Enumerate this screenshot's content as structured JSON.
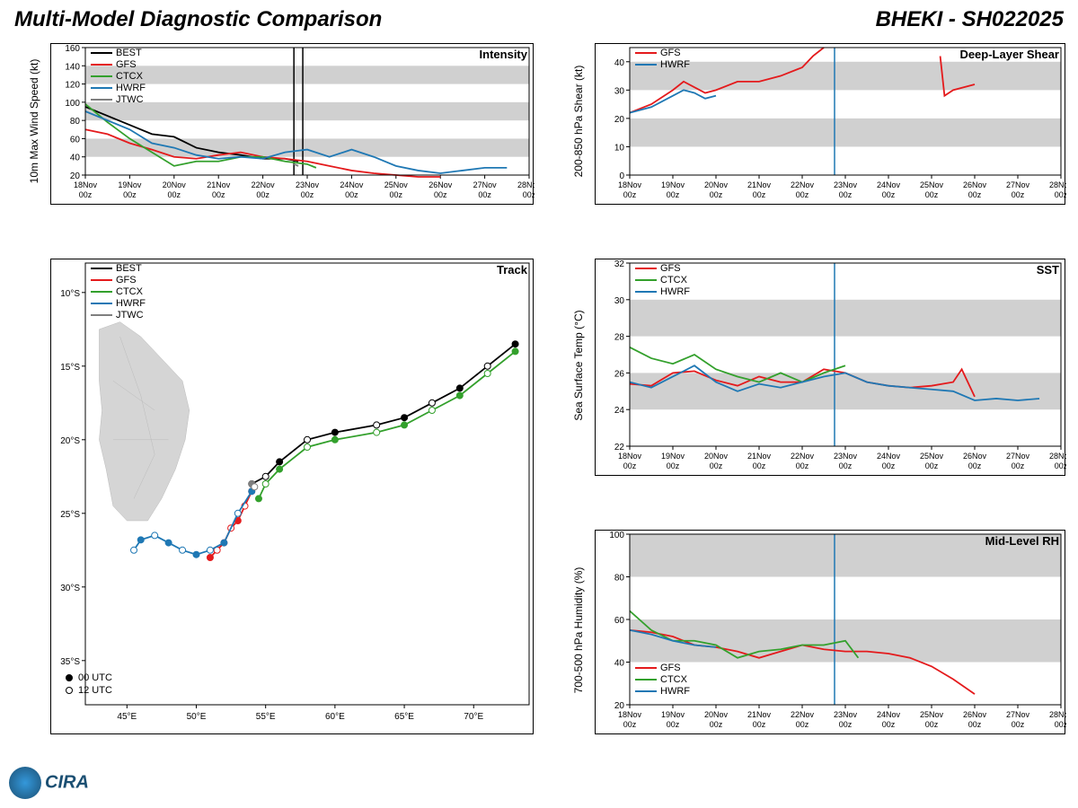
{
  "title": "Multi-Model Diagnostic Comparison",
  "storm_id": "BHEKI - SH022025",
  "colors": {
    "BEST": "#000000",
    "GFS": "#e41a1c",
    "CTCX": "#33a02c",
    "HWRF": "#1f78b4",
    "JTWC": "#7f7f7f",
    "grid_band": "#d0d0d0",
    "axis": "#000000",
    "vline": "#1f78b4",
    "bg": "#ffffff"
  },
  "x_axis": {
    "labels": [
      "18Nov\n00z",
      "19Nov\n00z",
      "20Nov\n00z",
      "21Nov\n00z",
      "22Nov\n00z",
      "23Nov\n00z",
      "24Nov\n00z",
      "25Nov\n00z",
      "26Nov\n00z",
      "27Nov\n00z",
      "28Nov\n00z"
    ],
    "tick_positions": [
      0,
      1,
      2,
      3,
      4,
      5,
      6,
      7,
      8,
      9,
      10
    ]
  },
  "intensity": {
    "title": "Intensity",
    "ylabel": "10m Max Wind Speed (kt)",
    "ylim": [
      20,
      160
    ],
    "ytick_step": 20,
    "gray_bands": [
      [
        40,
        60
      ],
      [
        80,
        100
      ],
      [
        120,
        140
      ]
    ],
    "vlines": [
      4.7,
      4.9
    ],
    "legend": [
      "BEST",
      "GFS",
      "CTCX",
      "HWRF",
      "JTWC"
    ],
    "series": {
      "BEST": [
        [
          0,
          95
        ],
        [
          0.5,
          85
        ],
        [
          1,
          75
        ],
        [
          1.5,
          65
        ],
        [
          2,
          62
        ],
        [
          2.5,
          50
        ],
        [
          3,
          45
        ],
        [
          3.5,
          42
        ],
        [
          4,
          38
        ],
        [
          4.5,
          38
        ],
        [
          4.8,
          35
        ]
      ],
      "GFS": [
        [
          0,
          70
        ],
        [
          0.5,
          65
        ],
        [
          1,
          55
        ],
        [
          1.5,
          48
        ],
        [
          2,
          40
        ],
        [
          2.5,
          38
        ],
        [
          3,
          42
        ],
        [
          3.5,
          45
        ],
        [
          4,
          40
        ],
        [
          4.5,
          38
        ],
        [
          5,
          35
        ],
        [
          5.5,
          30
        ],
        [
          6,
          25
        ],
        [
          6.5,
          22
        ],
        [
          7,
          20
        ],
        [
          7.5,
          18
        ],
        [
          8,
          18
        ]
      ],
      "CTCX": [
        [
          0,
          98
        ],
        [
          0.5,
          78
        ],
        [
          1,
          60
        ],
        [
          1.5,
          45
        ],
        [
          2,
          30
        ],
        [
          2.5,
          35
        ],
        [
          3,
          35
        ],
        [
          3.5,
          40
        ],
        [
          4,
          40
        ],
        [
          4.5,
          35
        ],
        [
          5,
          32
        ],
        [
          5.2,
          28
        ]
      ],
      "HWRF": [
        [
          0,
          90
        ],
        [
          0.5,
          80
        ],
        [
          1,
          70
        ],
        [
          1.5,
          55
        ],
        [
          2,
          50
        ],
        [
          2.5,
          42
        ],
        [
          3,
          38
        ],
        [
          3.5,
          40
        ],
        [
          4,
          38
        ],
        [
          4.5,
          45
        ],
        [
          5,
          48
        ],
        [
          5.5,
          40
        ],
        [
          6,
          48
        ],
        [
          6.5,
          40
        ],
        [
          7,
          30
        ],
        [
          7.5,
          25
        ],
        [
          8,
          22
        ],
        [
          8.5,
          25
        ],
        [
          9,
          28
        ],
        [
          9.5,
          28
        ]
      ],
      "JTWC": [
        [
          4.7,
          32
        ],
        [
          4.8,
          30
        ]
      ]
    }
  },
  "track": {
    "title": "Track",
    "legend": [
      "BEST",
      "GFS",
      "CTCX",
      "HWRF",
      "JTWC"
    ],
    "xlim": [
      42,
      74
    ],
    "ylim": [
      38,
      8
    ],
    "xticks": [
      45,
      50,
      55,
      60,
      65,
      70
    ],
    "yticks": [
      10,
      15,
      20,
      25,
      30,
      35
    ],
    "xlabels": [
      "45°E",
      "50°E",
      "55°E",
      "60°E",
      "65°E",
      "70°E"
    ],
    "ylabels": [
      "10°S",
      "15°S",
      "20°S",
      "25°S",
      "30°S",
      "35°S"
    ],
    "marker_legend": [
      {
        "fill": "#000000",
        "label": "00 UTC"
      },
      {
        "fill": "none",
        "label": "12 UTC"
      }
    ],
    "series": {
      "BEST": [
        [
          73,
          13.5
        ],
        [
          71,
          15
        ],
        [
          69,
          16.5
        ],
        [
          67,
          17.5
        ],
        [
          65,
          18.5
        ],
        [
          63,
          19
        ],
        [
          60,
          19.5
        ],
        [
          58,
          20
        ],
        [
          56,
          21.5
        ],
        [
          55,
          22.5
        ],
        [
          54,
          23
        ]
      ],
      "GFS": [
        [
          54,
          23.5
        ],
        [
          53.5,
          24.5
        ],
        [
          53,
          25.5
        ],
        [
          52.5,
          26
        ],
        [
          52,
          27
        ],
        [
          51.5,
          27.5
        ],
        [
          51,
          28
        ]
      ],
      "CTCX": [
        [
          73,
          14
        ],
        [
          71,
          15.5
        ],
        [
          69,
          17
        ],
        [
          67,
          18
        ],
        [
          65,
          19
        ],
        [
          63,
          19.5
        ],
        [
          60,
          20
        ],
        [
          58,
          20.5
        ],
        [
          56,
          22
        ],
        [
          55,
          23
        ],
        [
          54.5,
          24
        ]
      ],
      "HWRF": [
        [
          54,
          23.5
        ],
        [
          53,
          25
        ],
        [
          52,
          27
        ],
        [
          51,
          27.5
        ],
        [
          50,
          27.8
        ],
        [
          49,
          27.5
        ],
        [
          48,
          27
        ],
        [
          47,
          26.5
        ],
        [
          46,
          26.8
        ],
        [
          45.5,
          27.5
        ]
      ],
      "JTWC": [
        [
          54,
          23
        ],
        [
          54.2,
          23.2
        ]
      ]
    }
  },
  "shear": {
    "title": "Deep-Layer Shear",
    "ylabel": "200-850 hPa Shear (kt)",
    "ylim": [
      0,
      45
    ],
    "ytick_positions": [
      0,
      10,
      20,
      30,
      40
    ],
    "gray_bands": [
      [
        10,
        20
      ],
      [
        30,
        40
      ]
    ],
    "vline": 4.75,
    "legend": [
      "GFS",
      "HWRF"
    ],
    "series": {
      "GFS": [
        [
          0,
          22
        ],
        [
          0.5,
          25
        ],
        [
          1,
          30
        ],
        [
          1.25,
          33
        ],
        [
          1.5,
          31
        ],
        [
          1.75,
          29
        ],
        [
          2,
          30
        ],
        [
          2.5,
          33
        ],
        [
          3,
          33
        ],
        [
          3.5,
          35
        ],
        [
          4,
          38
        ],
        [
          4.25,
          42
        ],
        [
          4.5,
          45
        ]
      ],
      "GFS2": [
        [
          7.2,
          42
        ],
        [
          7.3,
          28
        ],
        [
          7.5,
          30
        ],
        [
          8,
          32
        ]
      ],
      "HWRF": [
        [
          0,
          22
        ],
        [
          0.5,
          24
        ],
        [
          1,
          28
        ],
        [
          1.25,
          30
        ],
        [
          1.5,
          29
        ],
        [
          1.75,
          27
        ],
        [
          2,
          28
        ]
      ]
    }
  },
  "sst": {
    "title": "SST",
    "ylabel": "Sea Surface Temp (°C)",
    "ylim": [
      22,
      32
    ],
    "ytick_step": 2,
    "gray_bands": [
      [
        24,
        26
      ],
      [
        28,
        30
      ]
    ],
    "vline": 4.75,
    "legend": [
      "GFS",
      "CTCX",
      "HWRF"
    ],
    "series": {
      "GFS": [
        [
          0,
          25.4
        ],
        [
          0.5,
          25.3
        ],
        [
          1,
          26
        ],
        [
          1.5,
          26.1
        ],
        [
          2,
          25.6
        ],
        [
          2.5,
          25.3
        ],
        [
          3,
          25.8
        ],
        [
          3.5,
          25.5
        ],
        [
          4,
          25.5
        ],
        [
          4.5,
          26.2
        ],
        [
          5,
          26
        ],
        [
          5.5,
          25.5
        ],
        [
          6,
          25.3
        ],
        [
          6.5,
          25.2
        ],
        [
          7,
          25.3
        ],
        [
          7.5,
          25.5
        ],
        [
          7.7,
          26.2
        ],
        [
          8,
          24.7
        ]
      ],
      "CTCX": [
        [
          0,
          27.4
        ],
        [
          0.5,
          26.8
        ],
        [
          1,
          26.5
        ],
        [
          1.5,
          27
        ],
        [
          2,
          26.2
        ],
        [
          2.5,
          25.8
        ],
        [
          3,
          25.5
        ],
        [
          3.5,
          26
        ],
        [
          4,
          25.5
        ],
        [
          4.5,
          26
        ],
        [
          5,
          26.4
        ]
      ],
      "HWRF": [
        [
          0,
          25.5
        ],
        [
          0.5,
          25.2
        ],
        [
          1,
          25.8
        ],
        [
          1.5,
          26.4
        ],
        [
          2,
          25.5
        ],
        [
          2.5,
          25
        ],
        [
          3,
          25.4
        ],
        [
          3.5,
          25.2
        ],
        [
          4,
          25.5
        ],
        [
          4.5,
          25.8
        ],
        [
          5,
          26
        ],
        [
          5.5,
          25.5
        ],
        [
          6,
          25.3
        ],
        [
          6.5,
          25.2
        ],
        [
          7,
          25.1
        ],
        [
          7.5,
          25
        ],
        [
          8,
          24.5
        ],
        [
          8.5,
          24.6
        ],
        [
          9,
          24.5
        ],
        [
          9.5,
          24.6
        ]
      ]
    }
  },
  "rh": {
    "title": "Mid-Level RH",
    "ylabel": "700-500 hPa Humidity (%)",
    "ylim": [
      20,
      100
    ],
    "ytick_step": 20,
    "gray_bands": [
      [
        40,
        60
      ],
      [
        80,
        100
      ]
    ],
    "vline": 4.75,
    "legend": [
      "GFS",
      "CTCX",
      "HWRF"
    ],
    "series": {
      "GFS": [
        [
          0,
          55
        ],
        [
          0.5,
          54
        ],
        [
          1,
          52
        ],
        [
          1.5,
          48
        ],
        [
          2,
          47
        ],
        [
          2.5,
          45
        ],
        [
          3,
          42
        ],
        [
          3.5,
          45
        ],
        [
          4,
          48
        ],
        [
          4.5,
          46
        ],
        [
          5,
          45
        ],
        [
          5.5,
          45
        ],
        [
          6,
          44
        ],
        [
          6.5,
          42
        ],
        [
          7,
          38
        ],
        [
          7.5,
          32
        ],
        [
          8,
          25
        ]
      ],
      "CTCX": [
        [
          0,
          64
        ],
        [
          0.5,
          55
        ],
        [
          1,
          50
        ],
        [
          1.5,
          50
        ],
        [
          2,
          48
        ],
        [
          2.5,
          42
        ],
        [
          3,
          45
        ],
        [
          3.5,
          46
        ],
        [
          4,
          48
        ],
        [
          4.5,
          48
        ],
        [
          5,
          50
        ],
        [
          5.3,
          42
        ]
      ],
      "HWRF": [
        [
          0,
          55
        ],
        [
          0.5,
          53
        ],
        [
          1,
          50
        ],
        [
          1.5,
          48
        ],
        [
          2,
          47
        ]
      ]
    },
    "legend_position": "bottom-left"
  },
  "logos": {
    "cira": "CIRA"
  }
}
